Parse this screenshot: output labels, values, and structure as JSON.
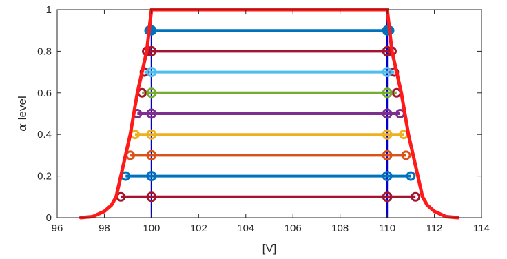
{
  "chart_data": {
    "type": "line",
    "xlabel": "[V]",
    "ylabel_symbol": "α",
    "ylabel_text": "level",
    "xlim": [
      96,
      114
    ],
    "ylim": [
      0,
      1
    ],
    "xticks": [
      "96",
      "98",
      "100",
      "102",
      "104",
      "106",
      "108",
      "110",
      "112",
      "114"
    ],
    "yticks": [
      "0",
      "0.2",
      "0.4",
      "0.6",
      "0.8",
      "1"
    ],
    "grid": false,
    "membership_curve": {
      "color": "#ff1a1a",
      "x": [
        97.0,
        97.5,
        98.0,
        98.3,
        98.5,
        98.7,
        98.9,
        99.1,
        99.25,
        99.4,
        99.6,
        99.8,
        100.0,
        110.0,
        110.2,
        110.4,
        110.6,
        110.75,
        110.9,
        111.1,
        111.3,
        111.5,
        111.7,
        112.0,
        112.5,
        113.0
      ],
      "y": [
        0.0,
        0.005,
        0.03,
        0.06,
        0.1,
        0.2,
        0.3,
        0.4,
        0.5,
        0.6,
        0.7,
        0.8,
        1.0,
        1.0,
        0.8,
        0.7,
        0.6,
        0.5,
        0.4,
        0.3,
        0.2,
        0.1,
        0.06,
        0.03,
        0.005,
        0.0
      ]
    },
    "vertical_lines": {
      "x": [
        100,
        110
      ],
      "color": "#0000cc"
    },
    "series": [
      {
        "alpha": 0.1,
        "x_outer": [
          98.7,
          111.2
        ],
        "x_inner": [
          100,
          110
        ],
        "color": "#a2142f",
        "outer_color": "#a2142f"
      },
      {
        "alpha": 0.2,
        "x_outer": [
          98.9,
          111.0
        ],
        "x_inner": [
          100,
          110
        ],
        "color": "#0072bd",
        "outer_color": "#0072bd"
      },
      {
        "alpha": 0.3,
        "x_outer": [
          99.1,
          110.8
        ],
        "x_inner": [
          100,
          110
        ],
        "color": "#d95319",
        "outer_color": "#d95319"
      },
      {
        "alpha": 0.4,
        "x_outer": [
          99.3,
          110.7
        ],
        "x_inner": [
          100,
          110
        ],
        "color": "#edb120",
        "outer_color": "#edb120"
      },
      {
        "alpha": 0.5,
        "x_outer": [
          99.4,
          110.55
        ],
        "x_inner": [
          100,
          110
        ],
        "color": "#7e2f8e",
        "outer_color": "#7e2f8e"
      },
      {
        "alpha": 0.6,
        "x_outer": [
          99.6,
          110.4
        ],
        "x_inner": [
          100,
          110
        ],
        "color": "#77ac30",
        "outer_color": "#a2142f"
      },
      {
        "alpha": 0.7,
        "x_outer": [
          99.7,
          110.3
        ],
        "x_inner": [
          100,
          110
        ],
        "color": "#4dbeee",
        "outer_color": "#a2142f"
      },
      {
        "alpha": 0.8,
        "x_outer": [
          99.8,
          110.2
        ],
        "x_inner": [
          100,
          110
        ],
        "color": "#a2142f",
        "outer_color": "#a2142f"
      },
      {
        "alpha": 0.9,
        "x_outer": [
          99.9,
          110.1
        ],
        "x_inner": [
          100,
          110
        ],
        "color": "#0072bd",
        "outer_color": "#0072bd"
      }
    ]
  }
}
